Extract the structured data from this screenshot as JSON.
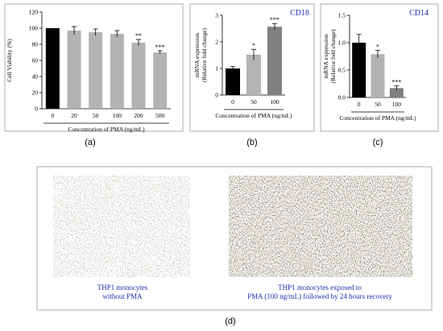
{
  "chart_data": [
    {
      "panel": "(a)",
      "type": "bar",
      "title": "",
      "xlabel": "Concentration of PMA (ng/mL)",
      "ylabel": "Cell Viability (%)",
      "categories": [
        "0",
        "20",
        "50",
        "100",
        "200",
        "500"
      ],
      "values": [
        100,
        97,
        95,
        93,
        82,
        70
      ],
      "errors": [
        0,
        5,
        4,
        4,
        4,
        2
      ],
      "significance": [
        "",
        "",
        "",
        "",
        "**",
        "***"
      ],
      "colors": [
        "#000000",
        "#b3b3b3",
        "#b3b3b3",
        "#b3b3b3",
        "#b3b3b3",
        "#b3b3b3"
      ],
      "ylim": [
        0,
        120
      ],
      "yticks": [
        0,
        20,
        40,
        60,
        80,
        100,
        120
      ],
      "ytick_labels": [
        "0",
        "20",
        "40",
        "60",
        "80",
        "100",
        "120"
      ]
    },
    {
      "panel": "(b)",
      "type": "bar",
      "title": "CD18",
      "xlabel": "Concentration of PMA (ng/mL)",
      "ylabel": "mRNA expression (Relative fold change)",
      "categories": [
        "0",
        "50",
        "100"
      ],
      "values": [
        1.0,
        1.52,
        2.57
      ],
      "errors": [
        0.07,
        0.2,
        0.12
      ],
      "significance": [
        "",
        "*",
        "***"
      ],
      "colors": [
        "#000000",
        "#b3b3b3",
        "#808080"
      ],
      "ylim": [
        0,
        3
      ],
      "yticks": [
        0,
        1,
        2,
        3
      ],
      "ytick_labels": [
        "0",
        "1",
        "2",
        "3"
      ]
    },
    {
      "panel": "(c)",
      "type": "bar",
      "title": "CD14",
      "xlabel": "Concentration of PMA (ng/mL)",
      "ylabel": "mRNA expression (Relative fold change)",
      "categories": [
        "0",
        "50",
        "100"
      ],
      "values": [
        1.0,
        0.79,
        0.17
      ],
      "errors": [
        0.15,
        0.07,
        0.04
      ],
      "significance": [
        "",
        "*",
        "***"
      ],
      "colors": [
        "#000000",
        "#b3b3b3",
        "#808080"
      ],
      "ylim": [
        0,
        1.5
      ],
      "yticks": [
        0,
        0.5,
        1.0,
        1.5
      ],
      "ytick_labels": [
        "0.0",
        "0.5",
        "1.0",
        "1.5"
      ]
    }
  ],
  "micrographs": {
    "panel": "(d)",
    "left_caption": [
      "THP1 monocytes",
      "without PMA"
    ],
    "right_caption": [
      "THP1 monocytes exposed to",
      "PMA (100 ng/mL) followed by 24 hours recovery"
    ]
  }
}
